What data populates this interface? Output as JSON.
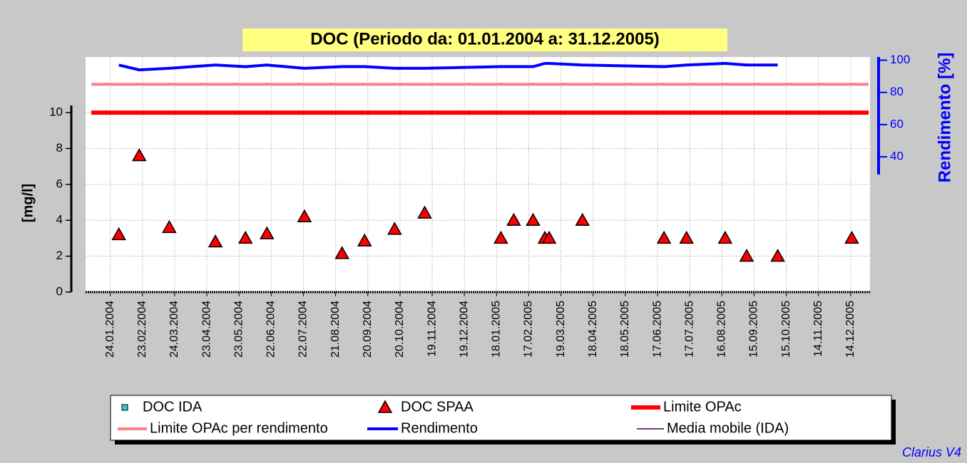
{
  "chart_data": {
    "type": "scatter",
    "title": "DOC (Periodo da: 01.01.2004 a: 31.12.2005)",
    "ylabel": "[mg/l]",
    "y2label": "Rendimento [%]",
    "credit": "Clarius V4",
    "xlim": [
      "2004-01-01",
      "2006-01-01"
    ],
    "ylim": [
      0,
      13.1
    ],
    "y2lim": [
      -44,
      102
    ],
    "yticks": [
      0,
      2,
      4,
      6,
      8,
      10
    ],
    "y2ticks": [
      40,
      60,
      80,
      100
    ],
    "grid": true,
    "xticks": [
      {
        "value": "2004-01-24",
        "label": "24.01.2004"
      },
      {
        "value": "2004-02-23",
        "label": "23.02.2004"
      },
      {
        "value": "2004-03-24",
        "label": "24.03.2004"
      },
      {
        "value": "2004-04-23",
        "label": "23.04.2004"
      },
      {
        "value": "2004-05-23",
        "label": "23.05.2004"
      },
      {
        "value": "2004-06-22",
        "label": "22.06.2004"
      },
      {
        "value": "2004-07-22",
        "label": "22.07.2004"
      },
      {
        "value": "2004-08-21",
        "label": "21.08.2004"
      },
      {
        "value": "2004-09-20",
        "label": "20.09.2004"
      },
      {
        "value": "2004-10-20",
        "label": "20.10.2004"
      },
      {
        "value": "2004-11-19",
        "label": "19.11.2004"
      },
      {
        "value": "2004-12-19",
        "label": "19.12.2004"
      },
      {
        "value": "2005-01-18",
        "label": "18.01.2005"
      },
      {
        "value": "2005-02-17",
        "label": "17.02.2005"
      },
      {
        "value": "2005-03-19",
        "label": "19.03.2005"
      },
      {
        "value": "2005-04-18",
        "label": "18.04.2005"
      },
      {
        "value": "2005-05-18",
        "label": "18.05.2005"
      },
      {
        "value": "2005-06-17",
        "label": "17.06.2005"
      },
      {
        "value": "2005-07-17",
        "label": "17.07.2005"
      },
      {
        "value": "2005-08-16",
        "label": "16.08.2005"
      },
      {
        "value": "2005-09-15",
        "label": "15.09.2005"
      },
      {
        "value": "2005-10-15",
        "label": "15.10.2005"
      },
      {
        "value": "2005-11-14",
        "label": "14.11.2005"
      },
      {
        "value": "2005-12-14",
        "label": "14.12.2005"
      }
    ],
    "series": [
      {
        "name": "DOC IDA",
        "color": "#33cccc",
        "marker": "square",
        "x": [],
        "values": []
      },
      {
        "name": "DOC SPAA",
        "color": "#ff0000",
        "marker": "triangle",
        "x": [
          "2004-02-01",
          "2004-02-20",
          "2004-03-19",
          "2004-05-01",
          "2004-05-29",
          "2004-06-18",
          "2004-07-23",
          "2004-08-27",
          "2004-09-17",
          "2004-10-15",
          "2004-11-12",
          "2005-01-22",
          "2005-02-03",
          "2005-02-21",
          "2005-03-04",
          "2005-03-08",
          "2005-04-08",
          "2005-06-23",
          "2005-07-14",
          "2005-08-19",
          "2005-09-08",
          "2005-10-07",
          "2005-12-15"
        ],
        "values": [
          3.2,
          7.6,
          3.6,
          2.8,
          3.0,
          3.25,
          4.2,
          2.15,
          2.85,
          3.5,
          4.4,
          3.0,
          4.0,
          4.0,
          3.0,
          3.0,
          4.0,
          3.0,
          3.0,
          3.0,
          2.0,
          2.0,
          3.0
        ]
      },
      {
        "name": "Limite OPAc",
        "color": "#ff0000",
        "line_width": 6,
        "value": 10
      },
      {
        "name": "Limite OPAc per rendimento",
        "color": "#ff8080",
        "line_width": 4,
        "value": 85,
        "axis": "y2"
      },
      {
        "name": "Rendimento",
        "color": "#0000ff",
        "line_width": 4,
        "axis": "y2",
        "x": [
          "2004-02-01",
          "2004-02-20",
          "2004-03-19",
          "2004-05-01",
          "2004-05-29",
          "2004-06-18",
          "2004-07-23",
          "2004-08-27",
          "2004-09-17",
          "2004-10-15",
          "2004-11-12",
          "2005-01-22",
          "2005-02-03",
          "2005-02-21",
          "2005-03-04",
          "2005-03-08",
          "2005-04-08",
          "2005-06-23",
          "2005-07-14",
          "2005-08-19",
          "2005-09-08",
          "2005-10-07"
        ],
        "values": [
          97,
          94,
          95,
          97,
          96,
          97,
          95,
          96,
          96,
          95,
          95,
          96,
          96,
          96,
          98,
          98,
          97,
          96,
          97,
          98,
          97,
          97
        ]
      },
      {
        "name": "Media mobile (IDA)",
        "color": "#400040",
        "line_width": 1.5,
        "x": [],
        "values": []
      }
    ]
  }
}
